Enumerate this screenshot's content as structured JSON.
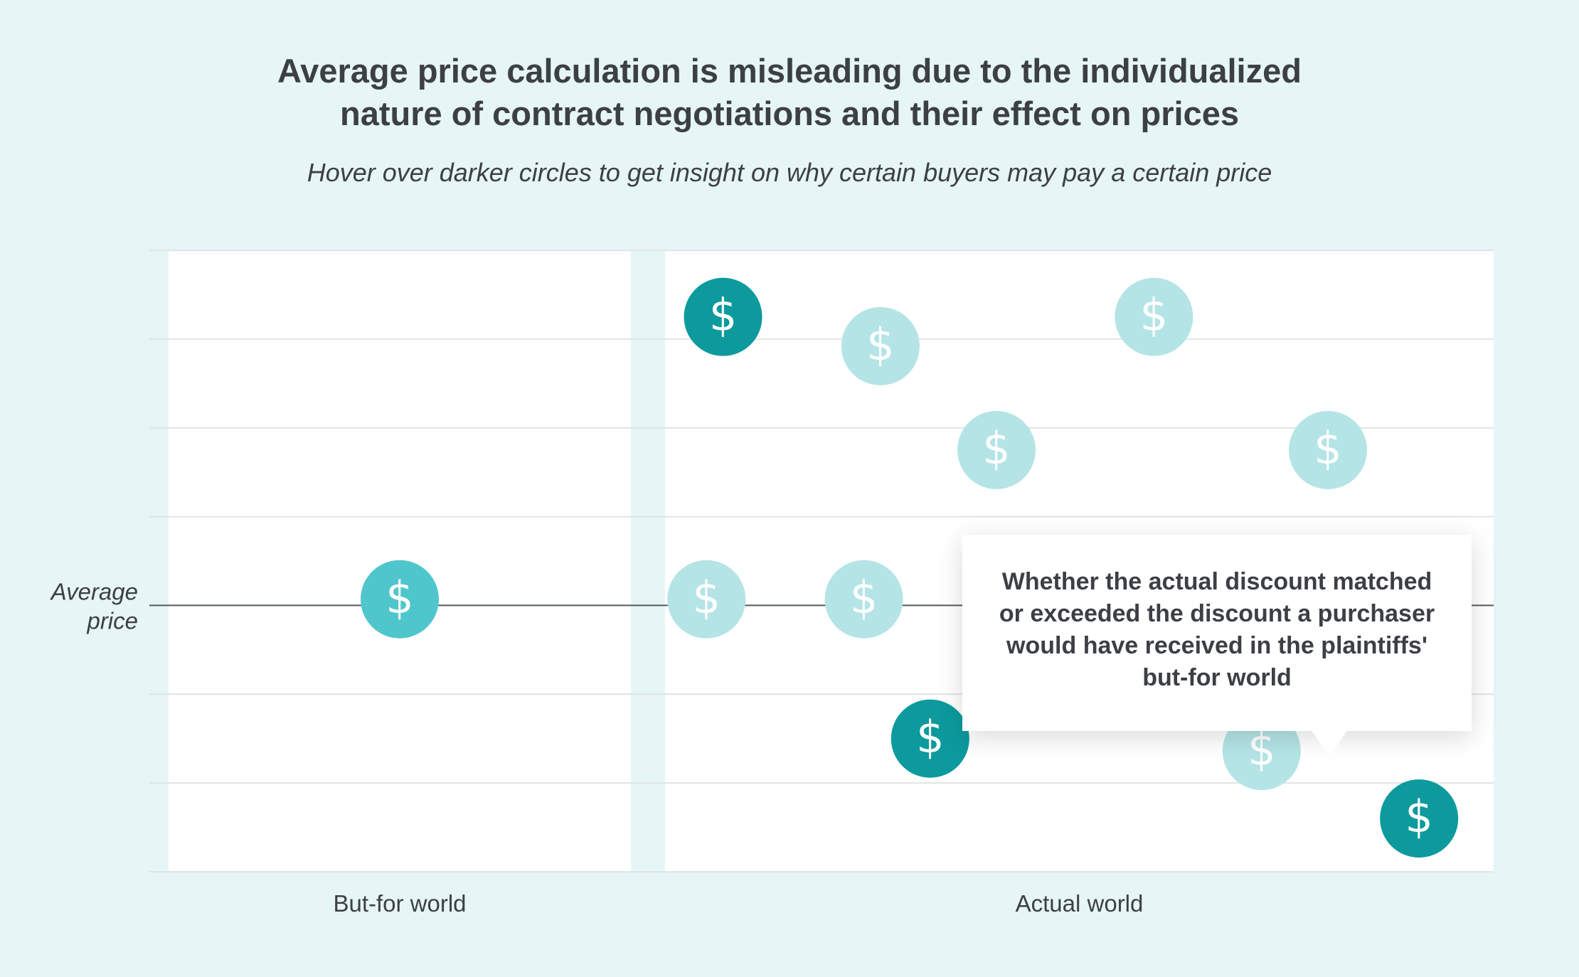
{
  "title_lines": [
    "Average price calculation is misleading due to the individualized",
    "nature of contract negotiations and their effect on prices"
  ],
  "subtitle": "Hover over darker circles to get insight on why certain buyers may pay a certain price",
  "tooltip_text": "Whether the actual discount matched or exceeded the discount a purchaser would have received in the plaintiffs' but-for world",
  "colors": {
    "background": "#e6f5f5",
    "panel": "#ffffff",
    "gap": "#e6f5f5",
    "dark_circle": "#0c9a9d",
    "medium_circle": "#4fc6cc",
    "light_circle": "#b4e4e6",
    "grid": "#dfe4e5",
    "average_line": "#555a5d"
  },
  "chart_data": {
    "type": "scatter",
    "title": "Average price calculation is misleading due to the individualized nature of contract negotiations and their effect on prices",
    "subtitle": "Hover over darker circles to get insight on why certain buyers may pay a certain price",
    "categories": [
      "But-for world",
      "Actual world"
    ],
    "reference_line": {
      "label_lines": [
        "Average",
        "price"
      ],
      "y": 0
    },
    "ylim": [
      -3,
      4
    ],
    "grid": true,
    "marker_icon": "dollar-icon",
    "points": [
      {
        "group": "But-for world",
        "x": 0.5,
        "y": 0.07,
        "style": "medium"
      },
      {
        "group": "Actual world",
        "x": 0.07,
        "y": 3.25,
        "style": "dark"
      },
      {
        "group": "Actual world",
        "x": 0.05,
        "y": 0.07,
        "style": "light"
      },
      {
        "group": "Actual world",
        "x": 0.26,
        "y": 2.92,
        "style": "light"
      },
      {
        "group": "Actual world",
        "x": 0.24,
        "y": 0.07,
        "style": "light"
      },
      {
        "group": "Actual world",
        "x": 0.4,
        "y": 1.75,
        "style": "light"
      },
      {
        "group": "Actual world",
        "x": 0.32,
        "y": -1.5,
        "style": "dark"
      },
      {
        "group": "Actual world",
        "x": 0.59,
        "y": 3.25,
        "style": "light"
      },
      {
        "group": "Actual world",
        "x": 0.8,
        "y": 1.75,
        "style": "light"
      },
      {
        "group": "Actual world",
        "x": 0.72,
        "y": -1.64,
        "style": "light"
      },
      {
        "group": "Actual world",
        "x": 0.91,
        "y": -2.4,
        "style": "dark"
      }
    ]
  }
}
